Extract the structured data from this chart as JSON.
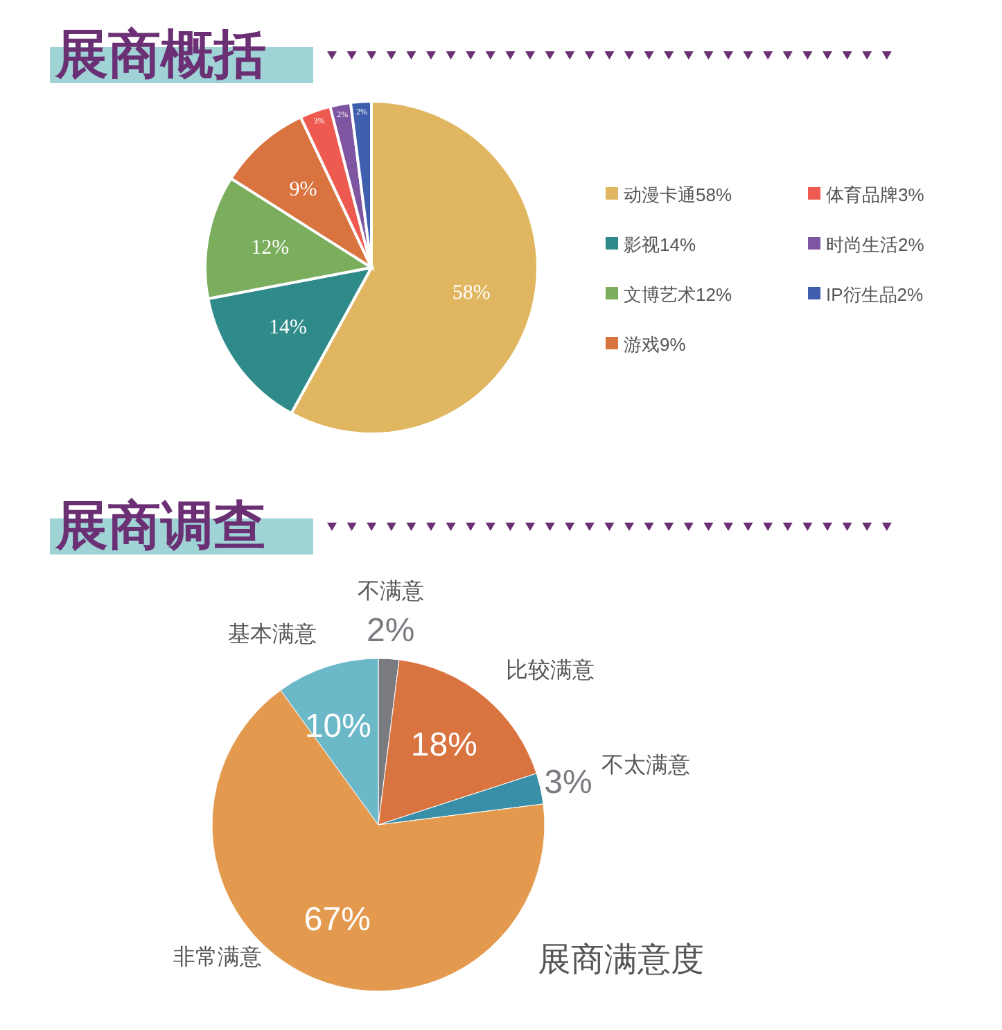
{
  "chart_data": [
    {
      "type": "pie",
      "title": "展商概括",
      "categories": [
        "动漫卡通",
        "影视",
        "文博艺术",
        "游戏",
        "体育品牌",
        "时尚生活",
        "IP衍生品"
      ],
      "values": [
        58,
        14,
        12,
        9,
        3,
        2,
        2
      ],
      "value_labels": [
        "58%",
        "14%",
        "12%",
        "9%",
        "3%",
        "2%",
        "2%"
      ],
      "colors": [
        "#e0b660",
        "#2e8b8a",
        "#7aad5c",
        "#d9733f",
        "#ef5a50",
        "#7e55a0",
        "#3f5fae"
      ],
      "legend": "right"
    },
    {
      "type": "pie",
      "title": "展商调查",
      "categories": [
        "不满意",
        "比较满意",
        "不太满意",
        "非常满意",
        "基本满意"
      ],
      "values": [
        2,
        18,
        3,
        67,
        10
      ],
      "value_labels": [
        "2%",
        "18%",
        "3%",
        "67%",
        "10%"
      ],
      "colors": [
        "#7a7b80",
        "#d9733f",
        "#3a8fa8",
        "#e49a4e",
        "#6bb8c8"
      ],
      "annotations": [
        "展商满意度"
      ]
    }
  ]
}
